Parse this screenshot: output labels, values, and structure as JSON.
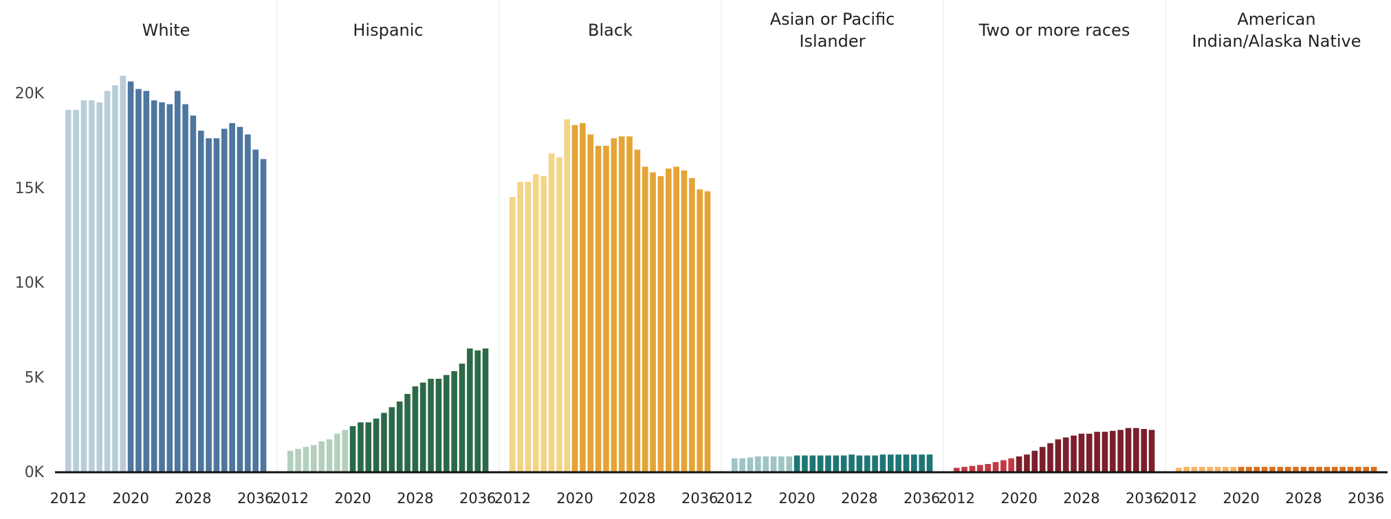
{
  "chart_data": {
    "type": "bar",
    "x": [
      2012,
      2013,
      2014,
      2015,
      2016,
      2017,
      2018,
      2019,
      2020,
      2021,
      2022,
      2023,
      2024,
      2025,
      2026,
      2027,
      2028,
      2029,
      2030,
      2031,
      2032,
      2033,
      2034,
      2035,
      2036,
      2037
    ],
    "x_tick_labels": [
      "2012",
      "2020",
      "2028",
      "2036"
    ],
    "y_tick_labels": [
      "0K",
      "5K",
      "10K",
      "15K",
      "20K"
    ],
    "ylim": [
      0,
      24000
    ],
    "grid": false,
    "panels": [
      {
        "title_lines": [
          "White"
        ],
        "values": [
          19100,
          19100,
          19600,
          19600,
          19500,
          20100,
          20400,
          20900,
          20600,
          20200,
          20100,
          19600,
          19500,
          19400,
          20100,
          19400,
          18800,
          18000,
          17600,
          17600,
          18100,
          18400,
          18200,
          17800,
          17000,
          16500
        ],
        "projected_from": 2020,
        "colors": {
          "historical": "#b9cdd9",
          "projected": "#4e769f"
        }
      },
      {
        "title_lines": [
          "Hispanic"
        ],
        "values": [
          1100,
          1200,
          1300,
          1400,
          1600,
          1700,
          2000,
          2200,
          2400,
          2600,
          2600,
          2800,
          3100,
          3400,
          3700,
          4100,
          4500,
          4700,
          4900,
          4900,
          5100,
          5300,
          5700,
          6500,
          6400,
          6500
        ],
        "projected_from": 2020,
        "colors": {
          "historical": "#b5cfbd",
          "projected": "#2c6a47"
        }
      },
      {
        "title_lines": [
          "Black"
        ],
        "values": [
          14500,
          15300,
          15300,
          15700,
          15600,
          16800,
          16600,
          18600,
          18300,
          18400,
          17800,
          17200,
          17200,
          17600,
          17700,
          17700,
          17000,
          16100,
          15800,
          15600,
          16000,
          16100,
          15900,
          15500,
          14900,
          14800
        ],
        "projected_from": 2020,
        "colors": {
          "historical": "#f3d586",
          "projected": "#e5a435"
        }
      },
      {
        "title_lines": [
          "Asian or Pacific",
          "Islander"
        ],
        "values": [
          700,
          700,
          750,
          800,
          800,
          800,
          800,
          800,
          850,
          850,
          850,
          850,
          850,
          850,
          850,
          900,
          850,
          850,
          850,
          900,
          900,
          900,
          900,
          900,
          900,
          900
        ],
        "projected_from": 2020,
        "colors": {
          "historical": "#9fc4c4",
          "projected": "#1e7675"
        }
      },
      {
        "title_lines": [
          "Two or more races"
        ],
        "values": [
          200,
          250,
          300,
          350,
          400,
          500,
          600,
          700,
          800,
          900,
          1100,
          1300,
          1500,
          1700,
          1800,
          1900,
          2000,
          2000,
          2100,
          2100,
          2150,
          2200,
          2300,
          2300,
          2250,
          2200
        ],
        "projected_from": 2020,
        "colors": {
          "historical": "#c43844",
          "projected": "#7b1f2a"
        }
      },
      {
        "title_lines": [
          "American",
          "Indian/Alaska Native"
        ],
        "values": [
          200,
          250,
          250,
          250,
          250,
          250,
          250,
          250,
          250,
          250,
          250,
          250,
          250,
          250,
          250,
          250,
          250,
          250,
          250,
          250,
          250,
          250,
          250,
          250,
          250,
          250
        ],
        "projected_from": 2020,
        "colors": {
          "historical": "#f4b56a",
          "projected": "#d96f1c"
        }
      }
    ]
  }
}
